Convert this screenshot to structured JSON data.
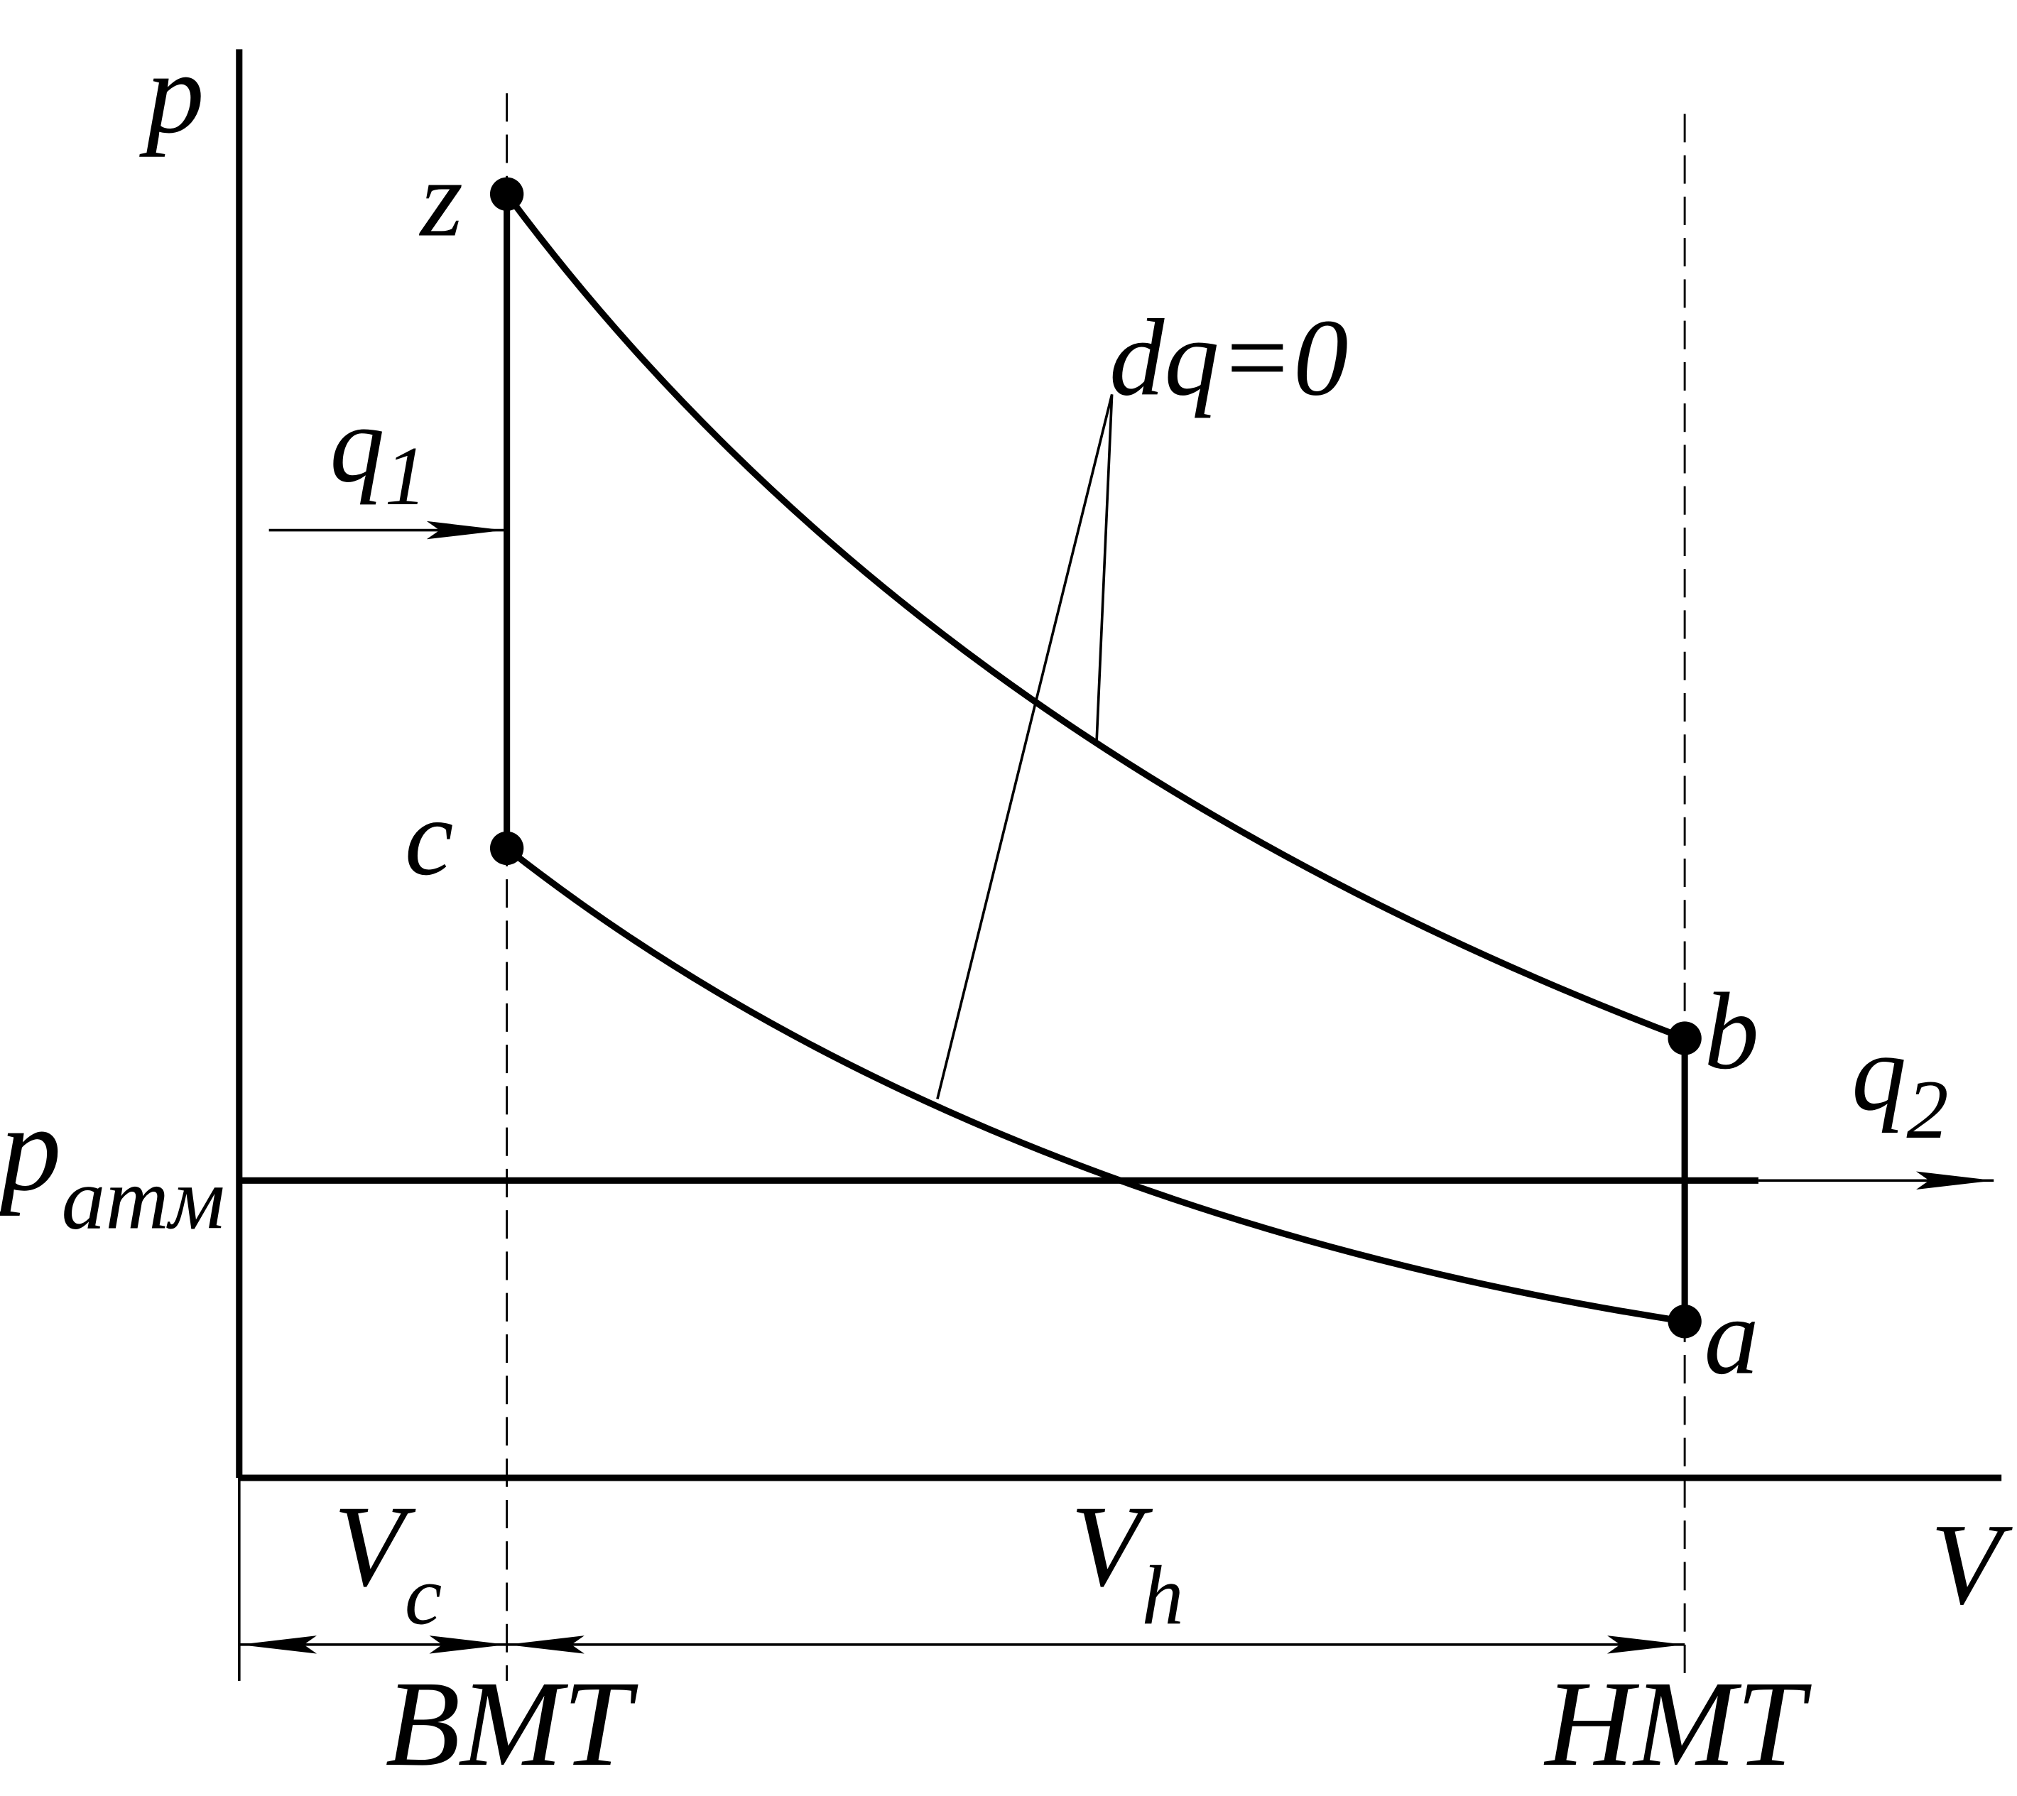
{
  "axes": {
    "y": "p",
    "x": "V"
  },
  "points": {
    "z": "z",
    "c": "c",
    "b": "b",
    "a": "a"
  },
  "heat_in": {
    "base": "q",
    "sub": "1"
  },
  "heat_out": {
    "base": "q",
    "sub": "2"
  },
  "adiabat_label": "dq=0",
  "atmospheric": {
    "base": "p",
    "sub": "атм"
  },
  "clearance_volume": {
    "base": "V",
    "sub": "c"
  },
  "displacement_volume": {
    "base": "V",
    "sub": "h"
  },
  "tdc": "ВМТ",
  "bdc": "НМТ"
}
